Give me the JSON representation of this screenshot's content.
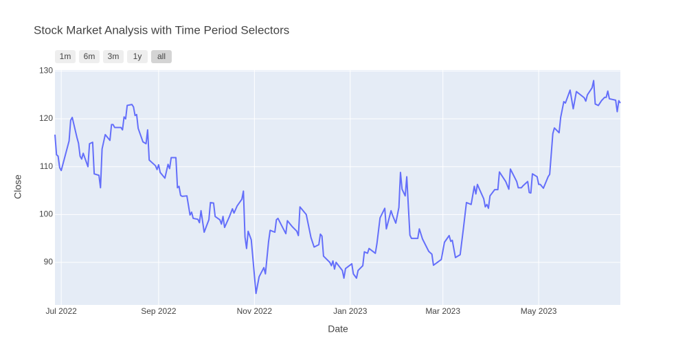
{
  "chart_data": {
    "type": "line",
    "title": "Stock Market Analysis with Time Period Selectors",
    "x_label": "Date",
    "y_label": "Close",
    "range_buttons": [
      "1m",
      "6m",
      "3m",
      "1y",
      "all"
    ],
    "active_button": 4,
    "color": "#636efa",
    "grid": true,
    "xlim": [
      "2022-06-27",
      "2023-06-22"
    ],
    "xticks": [
      {
        "value": "2022-07-01",
        "label": "Jul 2022"
      },
      {
        "value": "2022-09-01",
        "label": "Sep 2022"
      },
      {
        "value": "2022-11-01",
        "label": "Nov 2022"
      },
      {
        "value": "2023-01-01",
        "label": "Jan 2023"
      },
      {
        "value": "2023-03-01",
        "label": "Mar 2023"
      },
      {
        "value": "2023-05-01",
        "label": "May 2023"
      }
    ],
    "ylim": [
      81.1,
      130.2
    ],
    "yticks": [
      90,
      100,
      110,
      120,
      130
    ],
    "x": [
      "2022-06-27",
      "2022-06-28",
      "2022-06-29",
      "2022-06-30",
      "2022-07-01",
      "2022-07-06",
      "2022-07-07",
      "2022-07-08",
      "2022-07-11",
      "2022-07-12",
      "2022-07-13",
      "2022-07-14",
      "2022-07-15",
      "2022-07-18",
      "2022-07-19",
      "2022-07-21",
      "2022-07-22",
      "2022-07-25",
      "2022-07-26",
      "2022-07-27",
      "2022-07-29",
      "2022-08-01",
      "2022-08-02",
      "2022-08-03",
      "2022-08-04",
      "2022-08-08",
      "2022-08-09",
      "2022-08-10",
      "2022-08-11",
      "2022-08-12",
      "2022-08-15",
      "2022-08-16",
      "2022-08-17",
      "2022-08-18",
      "2022-08-19",
      "2022-08-22",
      "2022-08-24",
      "2022-08-25",
      "2022-08-26",
      "2022-08-30",
      "2022-08-31",
      "2022-09-01",
      "2022-09-02",
      "2022-09-05",
      "2022-09-07",
      "2022-09-08",
      "2022-09-09",
      "2022-09-12",
      "2022-09-13",
      "2022-09-14",
      "2022-09-15",
      "2022-09-16",
      "2022-09-19",
      "2022-09-21",
      "2022-09-22",
      "2022-09-23",
      "2022-09-26",
      "2022-09-27",
      "2022-09-28",
      "2022-09-30",
      "2022-10-03",
      "2022-10-04",
      "2022-10-06",
      "2022-10-07",
      "2022-10-10",
      "2022-10-11",
      "2022-10-12",
      "2022-10-13",
      "2022-10-16",
      "2022-10-18",
      "2022-10-19",
      "2022-10-21",
      "2022-10-24",
      "2022-10-25",
      "2022-10-26",
      "2022-10-27",
      "2022-10-28",
      "2022-10-30",
      "2022-11-02",
      "2022-11-04",
      "2022-11-07",
      "2022-11-08",
      "2022-11-10",
      "2022-11-11",
      "2022-11-14",
      "2022-11-15",
      "2022-11-16",
      "2022-11-18",
      "2022-11-21",
      "2022-11-22",
      "2022-11-25",
      "2022-11-28",
      "2022-11-29",
      "2022-11-30",
      "2022-12-04",
      "2022-12-07",
      "2022-12-09",
      "2022-12-12",
      "2022-12-13",
      "2022-12-14",
      "2022-12-15",
      "2022-12-19",
      "2022-12-20",
      "2022-12-21",
      "2022-12-22",
      "2022-12-23",
      "2022-12-27",
      "2022-12-28",
      "2022-12-29",
      "2023-01-02",
      "2023-01-03",
      "2023-01-05",
      "2023-01-06",
      "2023-01-09",
      "2023-01-10",
      "2023-01-12",
      "2023-01-13",
      "2023-01-17",
      "2023-01-18",
      "2023-01-20",
      "2023-01-23",
      "2023-01-24",
      "2023-01-27",
      "2023-01-28",
      "2023-01-30",
      "2023-02-01",
      "2023-02-02",
      "2023-02-03",
      "2023-02-05",
      "2023-02-06",
      "2023-02-08",
      "2023-02-09",
      "2023-02-13",
      "2023-02-14",
      "2023-02-16",
      "2023-02-20",
      "2023-02-22",
      "2023-02-23",
      "2023-02-28",
      "2023-03-02",
      "2023-03-05",
      "2023-03-06",
      "2023-03-07",
      "2023-03-09",
      "2023-03-12",
      "2023-03-14",
      "2023-03-16",
      "2023-03-19",
      "2023-03-21",
      "2023-03-22",
      "2023-03-23",
      "2023-03-24",
      "2023-03-27",
      "2023-03-28",
      "2023-03-29",
      "2023-03-30",
      "2023-03-31",
      "2023-04-03",
      "2023-04-05",
      "2023-04-06",
      "2023-04-10",
      "2023-04-12",
      "2023-04-13",
      "2023-04-17",
      "2023-04-18",
      "2023-04-20",
      "2023-04-21",
      "2023-04-24",
      "2023-04-25",
      "2023-04-26",
      "2023-04-27",
      "2023-04-30",
      "2023-05-01",
      "2023-05-02",
      "2023-05-04",
      "2023-05-07",
      "2023-05-08",
      "2023-05-10",
      "2023-05-11",
      "2023-05-14",
      "2023-05-15",
      "2023-05-17",
      "2023-05-18",
      "2023-05-21",
      "2023-05-23",
      "2023-05-25",
      "2023-05-30",
      "2023-05-31",
      "2023-06-01",
      "2023-06-04",
      "2023-06-05",
      "2023-06-06",
      "2023-06-08",
      "2023-06-10",
      "2023-06-12",
      "2023-06-13",
      "2023-06-14",
      "2023-06-15",
      "2023-06-19",
      "2023-06-20",
      "2023-06-21",
      "2023-06-22"
    ],
    "values": [
      116.7,
      112.5,
      112.2,
      109.8,
      109.2,
      115.4,
      119.7,
      120.3,
      116.1,
      114.9,
      112.2,
      111.6,
      112.8,
      110,
      114.8,
      115.1,
      108.5,
      108.2,
      105.6,
      113.7,
      116.7,
      115.5,
      118.8,
      118.8,
      118.2,
      118.2,
      117.7,
      120.4,
      120,
      122.8,
      123,
      122.5,
      120.7,
      120.9,
      118,
      115.2,
      114.8,
      117.7,
      111.4,
      110.2,
      109.4,
      110.4,
      108.8,
      107.6,
      110.5,
      109.6,
      111.9,
      111.9,
      105.6,
      105.9,
      104,
      103.8,
      103.9,
      99.9,
      100.5,
      99.2,
      99,
      98.3,
      100.8,
      96.3,
      98.9,
      102.5,
      102.4,
      99.6,
      98.9,
      98,
      99.6,
      97.3,
      99.5,
      101.2,
      100.3,
      101.8,
      103.2,
      104.9,
      95.3,
      92.9,
      96.5,
      94.7,
      83.5,
      87,
      88.9,
      87.6,
      94.3,
      96.7,
      96.3,
      98.9,
      99.2,
      97.9,
      96,
      98.7,
      97.5,
      96.5,
      95.6,
      101.6,
      100,
      95.2,
      93.2,
      93.7,
      95.9,
      95.5,
      91.3,
      90,
      89.3,
      90.3,
      88.6,
      90,
      88.3,
      86.7,
      88.7,
      89.7,
      87.6,
      86.7,
      88.3,
      89.3,
      92.2,
      91.9,
      92.9,
      91.9,
      93.9,
      99.3,
      101.3,
      97,
      100.8,
      99.8,
      98.2,
      101.5,
      108.8,
      105.3,
      103.9,
      107.9,
      95.7,
      95,
      95,
      97,
      94.9,
      92.3,
      91.7,
      89.4,
      90.6,
      94.2,
      95.6,
      94.4,
      94.6,
      91,
      91.6,
      96.9,
      102.5,
      102.1,
      105.9,
      104.3,
      106.3,
      105.5,
      103.3,
      101.6,
      102.1,
      101.3,
      103.9,
      105.2,
      105.2,
      108.9,
      106.9,
      105.3,
      109.5,
      106.9,
      105.6,
      105.6,
      106,
      106.9,
      104.6,
      104.5,
      108.5,
      107.9,
      106.3,
      106.3,
      105.5,
      107.9,
      108.4,
      116.9,
      118.1,
      117.1,
      120.3,
      123.6,
      123.3,
      126,
      122.1,
      125.7,
      124.4,
      123.7,
      125,
      126.5,
      128,
      123.1,
      122.8,
      123.8,
      124.5,
      124.5,
      125.8,
      124.2,
      123.9,
      121.5,
      123.8,
      123.3
    ]
  }
}
